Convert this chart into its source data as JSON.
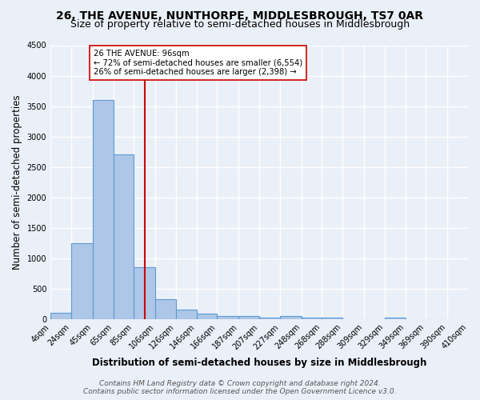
{
  "title": "26, THE AVENUE, NUNTHORPE, MIDDLESBROUGH, TS7 0AR",
  "subtitle": "Size of property relative to semi-detached houses in Middlesbrough",
  "xlabel": "Distribution of semi-detached houses by size in Middlesbrough",
  "ylabel": "Number of semi-detached properties",
  "footer_line1": "Contains HM Land Registry data © Crown copyright and database right 2024.",
  "footer_line2": "Contains public sector information licensed under the Open Government Licence v3.0.",
  "property_label": "26 THE AVENUE: 96sqm",
  "annotation_line1": "← 72% of semi-detached houses are smaller (6,554)",
  "annotation_line2": "26% of semi-detached houses are larger (2,398) →",
  "bin_edges": [
    4,
    24,
    45,
    65,
    85,
    106,
    126,
    146,
    166,
    187,
    207,
    227,
    248,
    268,
    288,
    309,
    329,
    349,
    369,
    390,
    410
  ],
  "bar_heights": [
    100,
    1250,
    3600,
    2700,
    850,
    320,
    160,
    90,
    50,
    50,
    30,
    50,
    30,
    30,
    0,
    0,
    30,
    0,
    0,
    0
  ],
  "bar_color": "#aec6e8",
  "bar_edge_color": "#5b9bd5",
  "red_line_x": 96,
  "red_line_color": "#cc0000",
  "annotation_box_color": "#ffffff",
  "annotation_box_edge": "#cc0000",
  "ylim": [
    0,
    4500
  ],
  "bg_color": "#eaf0f8",
  "grid_color": "#ffffff",
  "title_fontsize": 10,
  "subtitle_fontsize": 9,
  "tick_label_fontsize": 7,
  "axis_label_fontsize": 8.5,
  "footer_fontsize": 6.5
}
